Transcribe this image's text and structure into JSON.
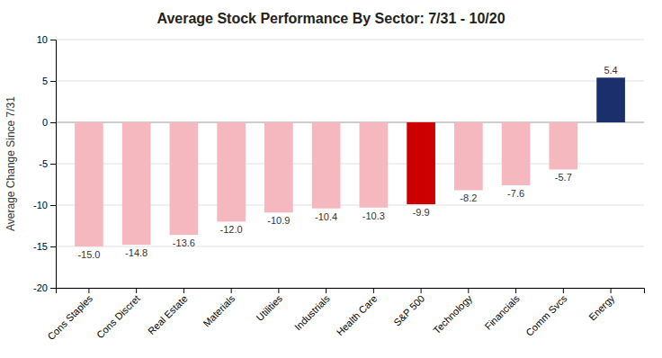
{
  "chart_data": {
    "type": "bar",
    "title": "Average Stock Performance By Sector: 7/31 - 10/20",
    "categories": [
      "Cons Staples",
      "Cons Discret",
      "Real Estate",
      "Materials",
      "Utilities",
      "Industrials",
      "Health Care",
      "S&P 500",
      "Technology",
      "Financials",
      "Comm Svcs",
      "Energy"
    ],
    "values": [
      -15.0,
      -14.8,
      -13.6,
      -12.0,
      -10.9,
      -10.4,
      -10.3,
      -9.9,
      -8.2,
      -7.6,
      -5.7,
      5.4
    ],
    "value_labels": [
      "-15.0",
      "-14.8",
      "-13.6",
      "-12.0",
      "-10.9",
      "-10.4",
      "-10.3",
      "-9.9",
      "-8.2",
      "-7.6",
      "-5.7",
      "5.4"
    ],
    "colors": [
      "#f4b8be",
      "#f4b8be",
      "#f4b8be",
      "#f4b8be",
      "#f4b8be",
      "#f4b8be",
      "#f4b8be",
      "#cc0000",
      "#f4b8be",
      "#f4b8be",
      "#f4b8be",
      "#1a2f6b"
    ],
    "ylabel": "Average Change Since 7/31",
    "ylim": [
      -20,
      10
    ],
    "yticks": [
      -20,
      -15,
      -10,
      -5,
      0,
      5,
      10
    ],
    "grid": true,
    "data_labels": true
  }
}
